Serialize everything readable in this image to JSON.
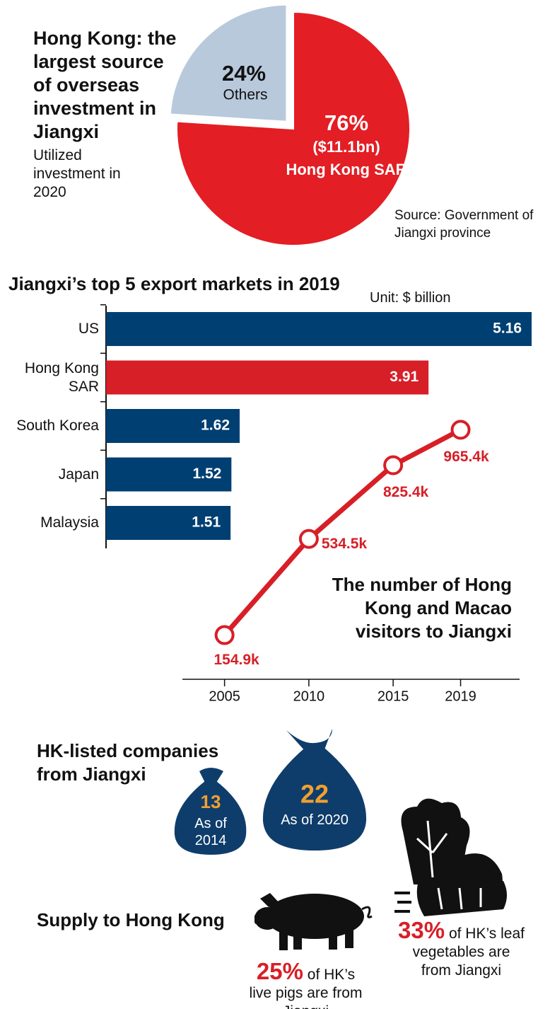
{
  "chart_data": [
    {
      "type": "pie",
      "title": "Hong Kong: the largest source of overseas investment in Jiangxi",
      "subtitle": "Utilized investment in 2020",
      "categories": [
        "Hong Kong SAR",
        "Others"
      ],
      "values": [
        76,
        24
      ],
      "value_labels": [
        "76%",
        "24%"
      ],
      "amount_label": "($11.1bn)",
      "colors": [
        "#e31e24",
        "#b8c9dc"
      ],
      "source": "Source: Government of Jiangxi province"
    },
    {
      "type": "hbar",
      "title": "Jiangxi’s top 5 export markets in 2019",
      "unit": "Unit: $ billion",
      "categories": [
        "US",
        "Hong Kong\nSAR",
        "South Korea",
        "Japan",
        "Malaysia"
      ],
      "values": [
        5.16,
        3.91,
        1.62,
        1.52,
        1.51
      ],
      "colors": [
        "#003f72",
        "#d71f27",
        "#003f72",
        "#003f72",
        "#003f72"
      ]
    },
    {
      "type": "line",
      "title": "The number of Hong Kong and Macao visitors to Jiangxi",
      "x": [
        2005,
        2010,
        2015,
        2019
      ],
      "values": [
        154.9,
        534.5,
        825.4,
        965.4
      ],
      "value_labels": [
        "154.9k",
        "534.5k",
        "825.4k",
        "965.4k"
      ],
      "color": "#d71f27",
      "xlim": [
        2002.5,
        2022.5
      ],
      "xticks": [
        2005,
        2010,
        2015,
        2019
      ],
      "ylim": [
        0,
        1000
      ]
    }
  ],
  "companies": {
    "title": "HK-listed companies from Jiangxi",
    "items": [
      {
        "count": "13",
        "label": "As of 2014"
      },
      {
        "count": "22",
        "label": "As of 2020"
      }
    ]
  },
  "supply": {
    "title": "Supply to Hong Kong",
    "items": [
      {
        "percent": "25%",
        "text": "of HK’s live pigs are from Jiangxi"
      },
      {
        "percent": "33%",
        "text": "of HK’s leaf vegetables are from Jiangxi"
      }
    ]
  }
}
